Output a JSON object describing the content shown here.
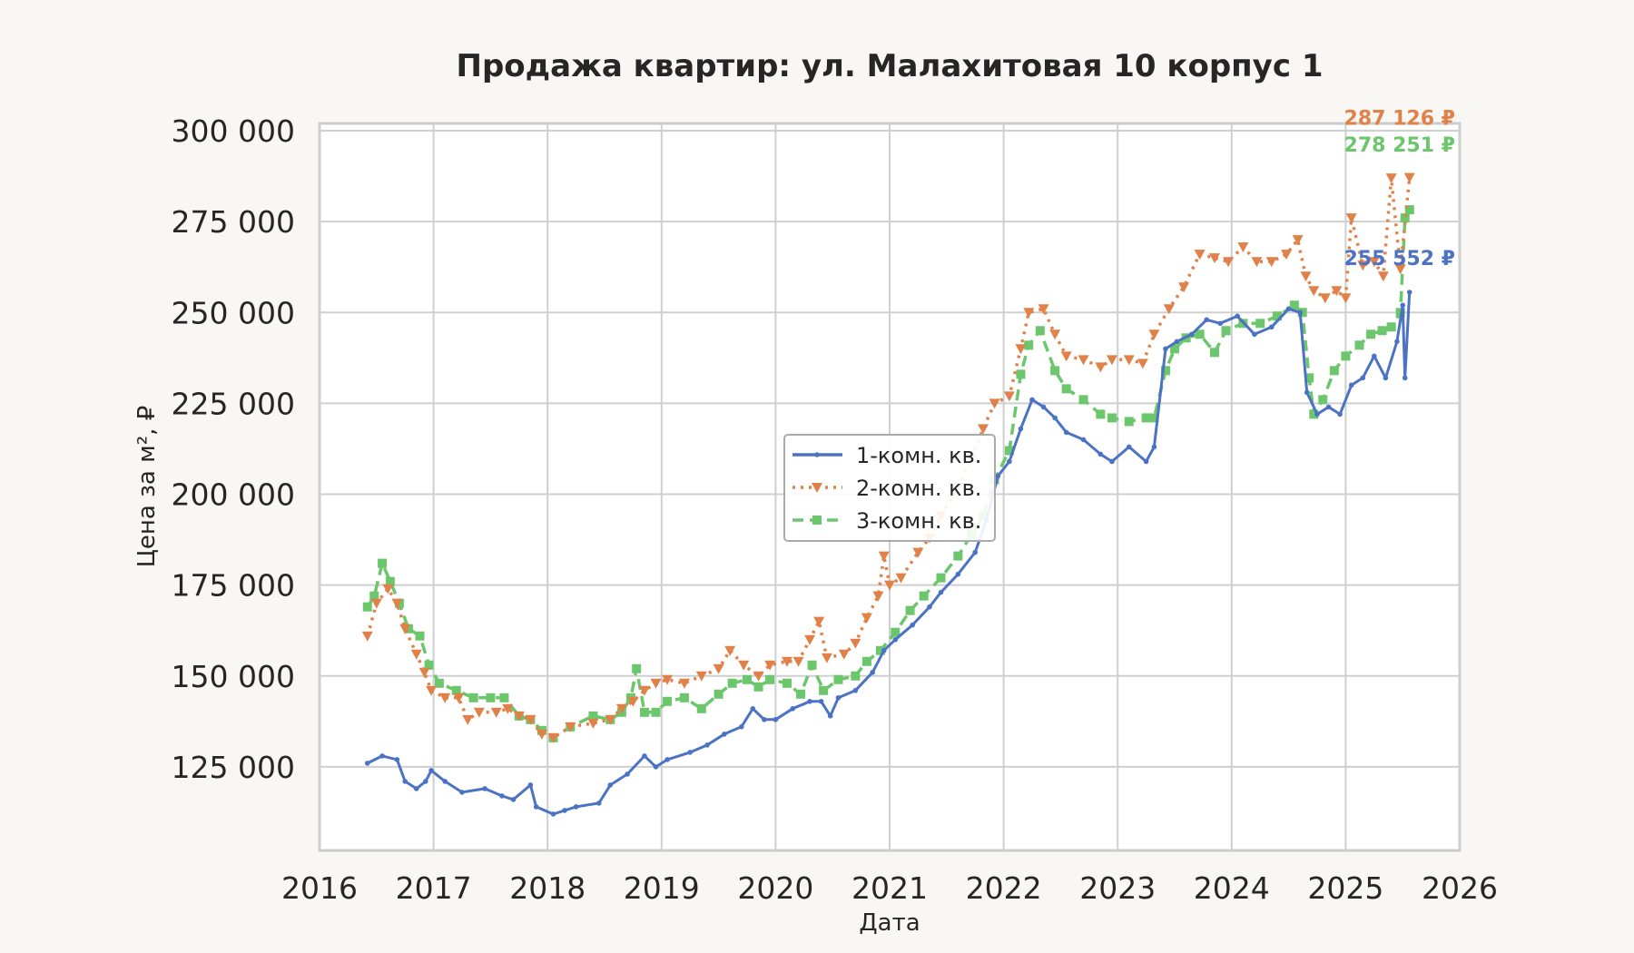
{
  "chart_data": {
    "type": "line",
    "title": "Продажа квартир: ул. Малахитовая 10 корпус 1",
    "xlabel": "Дата",
    "ylabel": "Цена за м², ₽",
    "xlim": [
      2016,
      2026
    ],
    "ylim": [
      102000,
      302000
    ],
    "x_ticks": [
      "2016",
      "2017",
      "2018",
      "2019",
      "2020",
      "2021",
      "2022",
      "2023",
      "2024",
      "2025",
      "2026"
    ],
    "y_ticks": [
      "125 000",
      "150 000",
      "175 000",
      "200 000",
      "225 000",
      "250 000",
      "275 000",
      "300 000"
    ],
    "grid": true,
    "legend_position": "center",
    "series": [
      {
        "name": "1-комн. кв.",
        "color": "#4c72c4",
        "marker": "dot",
        "line": "solid",
        "end_label": "255 552 ₽",
        "points": [
          [
            2016.42,
            126000
          ],
          [
            2016.55,
            128000
          ],
          [
            2016.68,
            127000
          ],
          [
            2016.75,
            121000
          ],
          [
            2016.85,
            119000
          ],
          [
            2016.93,
            121000
          ],
          [
            2016.98,
            124000
          ],
          [
            2017.1,
            121000
          ],
          [
            2017.25,
            118000
          ],
          [
            2017.45,
            119000
          ],
          [
            2017.6,
            117000
          ],
          [
            2017.7,
            116000
          ],
          [
            2017.85,
            120000
          ],
          [
            2017.9,
            114000
          ],
          [
            2018.05,
            112000
          ],
          [
            2018.15,
            113000
          ],
          [
            2018.25,
            114000
          ],
          [
            2018.45,
            115000
          ],
          [
            2018.55,
            120000
          ],
          [
            2018.7,
            123000
          ],
          [
            2018.85,
            128000
          ],
          [
            2018.95,
            125000
          ],
          [
            2019.05,
            127000
          ],
          [
            2019.25,
            129000
          ],
          [
            2019.4,
            131000
          ],
          [
            2019.55,
            134000
          ],
          [
            2019.7,
            136000
          ],
          [
            2019.8,
            141000
          ],
          [
            2019.9,
            138000
          ],
          [
            2020.0,
            138000
          ],
          [
            2020.15,
            141000
          ],
          [
            2020.3,
            143000
          ],
          [
            2020.4,
            143000
          ],
          [
            2020.48,
            139000
          ],
          [
            2020.55,
            144000
          ],
          [
            2020.7,
            146000
          ],
          [
            2020.85,
            151000
          ],
          [
            2020.95,
            157000
          ],
          [
            2021.05,
            160000
          ],
          [
            2021.2,
            164000
          ],
          [
            2021.35,
            169000
          ],
          [
            2021.45,
            173000
          ],
          [
            2021.6,
            178000
          ],
          [
            2021.75,
            184000
          ],
          [
            2021.85,
            193000
          ],
          [
            2021.95,
            205000
          ],
          [
            2022.05,
            209000
          ],
          [
            2022.15,
            218000
          ],
          [
            2022.25,
            226000
          ],
          [
            2022.35,
            224000
          ],
          [
            2022.45,
            221000
          ],
          [
            2022.55,
            217000
          ],
          [
            2022.7,
            215000
          ],
          [
            2022.85,
            211000
          ],
          [
            2022.95,
            209000
          ],
          [
            2023.1,
            213000
          ],
          [
            2023.25,
            209000
          ],
          [
            2023.32,
            213000
          ],
          [
            2023.42,
            240000
          ],
          [
            2023.52,
            242000
          ],
          [
            2023.65,
            244000
          ],
          [
            2023.78,
            248000
          ],
          [
            2023.9,
            247000
          ],
          [
            2024.05,
            249000
          ],
          [
            2024.2,
            244000
          ],
          [
            2024.35,
            246000
          ],
          [
            2024.5,
            251000
          ],
          [
            2024.6,
            250000
          ],
          [
            2024.66,
            228000
          ],
          [
            2024.75,
            222000
          ],
          [
            2024.85,
            224000
          ],
          [
            2024.95,
            222000
          ],
          [
            2025.05,
            230000
          ],
          [
            2025.15,
            232000
          ],
          [
            2025.25,
            238000
          ],
          [
            2025.35,
            232000
          ],
          [
            2025.45,
            242000
          ],
          [
            2025.5,
            252000
          ],
          [
            2025.52,
            232000
          ],
          [
            2025.56,
            255552
          ]
        ]
      },
      {
        "name": "2-комн. кв.",
        "color": "#e1814a",
        "marker": "triangle-down",
        "line": "dotted",
        "end_label": "287 126 ₽",
        "points": [
          [
            2016.42,
            161000
          ],
          [
            2016.5,
            170000
          ],
          [
            2016.6,
            174000
          ],
          [
            2016.68,
            170000
          ],
          [
            2016.75,
            163000
          ],
          [
            2016.85,
            156000
          ],
          [
            2016.92,
            151000
          ],
          [
            2016.98,
            146000
          ],
          [
            2017.1,
            144000
          ],
          [
            2017.22,
            144000
          ],
          [
            2017.3,
            138000
          ],
          [
            2017.4,
            140000
          ],
          [
            2017.55,
            140000
          ],
          [
            2017.65,
            141000
          ],
          [
            2017.75,
            139000
          ],
          [
            2017.85,
            138000
          ],
          [
            2017.95,
            134000
          ],
          [
            2018.05,
            133000
          ],
          [
            2018.2,
            136000
          ],
          [
            2018.4,
            137000
          ],
          [
            2018.55,
            138000
          ],
          [
            2018.65,
            141000
          ],
          [
            2018.75,
            143000
          ],
          [
            2018.85,
            146000
          ],
          [
            2018.95,
            148000
          ],
          [
            2019.05,
            149000
          ],
          [
            2019.2,
            148000
          ],
          [
            2019.35,
            150000
          ],
          [
            2019.5,
            152000
          ],
          [
            2019.6,
            157000
          ],
          [
            2019.72,
            153000
          ],
          [
            2019.85,
            150000
          ],
          [
            2019.95,
            153000
          ],
          [
            2020.1,
            154000
          ],
          [
            2020.2,
            154000
          ],
          [
            2020.3,
            160000
          ],
          [
            2020.38,
            165000
          ],
          [
            2020.45,
            155000
          ],
          [
            2020.6,
            156000
          ],
          [
            2020.7,
            159000
          ],
          [
            2020.8,
            166000
          ],
          [
            2020.9,
            172000
          ],
          [
            2020.95,
            183000
          ],
          [
            2021.0,
            175000
          ],
          [
            2021.1,
            177000
          ],
          [
            2021.25,
            184000
          ],
          [
            2021.35,
            188000
          ],
          [
            2021.45,
            194000
          ],
          [
            2021.6,
            202000
          ],
          [
            2021.72,
            210000
          ],
          [
            2021.82,
            218000
          ],
          [
            2021.92,
            225000
          ],
          [
            2022.05,
            227000
          ],
          [
            2022.15,
            240000
          ],
          [
            2022.22,
            250000
          ],
          [
            2022.35,
            251000
          ],
          [
            2022.45,
            244000
          ],
          [
            2022.55,
            238000
          ],
          [
            2022.7,
            237000
          ],
          [
            2022.85,
            235000
          ],
          [
            2022.95,
            237000
          ],
          [
            2023.1,
            237000
          ],
          [
            2023.22,
            236000
          ],
          [
            2023.32,
            244000
          ],
          [
            2023.45,
            251000
          ],
          [
            2023.58,
            257000
          ],
          [
            2023.72,
            266000
          ],
          [
            2023.85,
            265000
          ],
          [
            2023.97,
            264000
          ],
          [
            2024.1,
            268000
          ],
          [
            2024.22,
            264000
          ],
          [
            2024.35,
            264000
          ],
          [
            2024.48,
            266000
          ],
          [
            2024.58,
            270000
          ],
          [
            2024.65,
            260000
          ],
          [
            2024.72,
            256000
          ],
          [
            2024.82,
            254000
          ],
          [
            2024.92,
            256000
          ],
          [
            2025.0,
            254000
          ],
          [
            2025.05,
            276000
          ],
          [
            2025.15,
            263000
          ],
          [
            2025.25,
            264000
          ],
          [
            2025.33,
            260000
          ],
          [
            2025.4,
            287000
          ],
          [
            2025.48,
            262000
          ],
          [
            2025.56,
            287126
          ]
        ]
      },
      {
        "name": "3-комн. кв.",
        "color": "#6cc66c",
        "marker": "square",
        "line": "dashed",
        "end_label": "278 251 ₽",
        "points": [
          [
            2016.42,
            169000
          ],
          [
            2016.48,
            172000
          ],
          [
            2016.55,
            181000
          ],
          [
            2016.62,
            176000
          ],
          [
            2016.7,
            170000
          ],
          [
            2016.78,
            163000
          ],
          [
            2016.88,
            161000
          ],
          [
            2016.96,
            153000
          ],
          [
            2017.05,
            148000
          ],
          [
            2017.2,
            146000
          ],
          [
            2017.35,
            144000
          ],
          [
            2017.5,
            144000
          ],
          [
            2017.62,
            144000
          ],
          [
            2017.75,
            139000
          ],
          [
            2017.85,
            138000
          ],
          [
            2017.95,
            135000
          ],
          [
            2018.05,
            133000
          ],
          [
            2018.2,
            136000
          ],
          [
            2018.4,
            139000
          ],
          [
            2018.55,
            138000
          ],
          [
            2018.65,
            140000
          ],
          [
            2018.73,
            144000
          ],
          [
            2018.78,
            152000
          ],
          [
            2018.85,
            140000
          ],
          [
            2018.95,
            140000
          ],
          [
            2019.05,
            143000
          ],
          [
            2019.2,
            144000
          ],
          [
            2019.35,
            141000
          ],
          [
            2019.5,
            145000
          ],
          [
            2019.62,
            148000
          ],
          [
            2019.75,
            149000
          ],
          [
            2019.85,
            147000
          ],
          [
            2019.95,
            149000
          ],
          [
            2020.1,
            148000
          ],
          [
            2020.22,
            145000
          ],
          [
            2020.32,
            153000
          ],
          [
            2020.42,
            146000
          ],
          [
            2020.55,
            149000
          ],
          [
            2020.7,
            150000
          ],
          [
            2020.8,
            154000
          ],
          [
            2020.92,
            157000
          ],
          [
            2021.05,
            162000
          ],
          [
            2021.18,
            168000
          ],
          [
            2021.3,
            172000
          ],
          [
            2021.45,
            177000
          ],
          [
            2021.6,
            183000
          ],
          [
            2021.72,
            189000
          ],
          [
            2021.82,
            194000
          ],
          [
            2021.92,
            204000
          ],
          [
            2022.05,
            212000
          ],
          [
            2022.15,
            233000
          ],
          [
            2022.22,
            241000
          ],
          [
            2022.32,
            245000
          ],
          [
            2022.45,
            234000
          ],
          [
            2022.55,
            229000
          ],
          [
            2022.7,
            226000
          ],
          [
            2022.85,
            222000
          ],
          [
            2022.95,
            221000
          ],
          [
            2023.1,
            220000
          ],
          [
            2023.25,
            221000
          ],
          [
            2023.32,
            221000
          ],
          [
            2023.42,
            234000
          ],
          [
            2023.5,
            240000
          ],
          [
            2023.6,
            243000
          ],
          [
            2023.72,
            244000
          ],
          [
            2023.85,
            239000
          ],
          [
            2023.95,
            245000
          ],
          [
            2024.1,
            247000
          ],
          [
            2024.25,
            247000
          ],
          [
            2024.4,
            249000
          ],
          [
            2024.55,
            252000
          ],
          [
            2024.62,
            250000
          ],
          [
            2024.68,
            232000
          ],
          [
            2024.72,
            222000
          ],
          [
            2024.8,
            226000
          ],
          [
            2024.9,
            234000
          ],
          [
            2025.0,
            238000
          ],
          [
            2025.12,
            241000
          ],
          [
            2025.22,
            244000
          ],
          [
            2025.32,
            245000
          ],
          [
            2025.4,
            246000
          ],
          [
            2025.48,
            250000
          ],
          [
            2025.52,
            276000
          ],
          [
            2025.56,
            278251
          ]
        ]
      }
    ]
  }
}
